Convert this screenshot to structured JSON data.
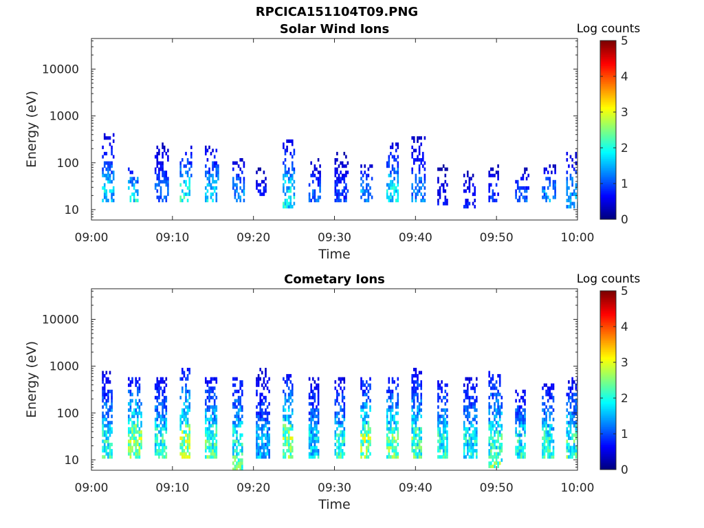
{
  "figure_title": "RPCICA151104T09.PNG",
  "chart_data": [
    {
      "type": "heatmap",
      "title": "Solar Wind Ions",
      "xlabel": "Time",
      "ylabel": "Energy (eV)",
      "x_ticks": [
        "09:00",
        "09:10",
        "09:20",
        "09:30",
        "09:40",
        "09:50",
        "10:00"
      ],
      "xlim": [
        "09:00",
        "10:00"
      ],
      "y_ticks": [
        "10",
        "100",
        "1000",
        "10000"
      ],
      "ylim": [
        6,
        45000
      ],
      "yscale": "log",
      "colorbar": {
        "label": "Log counts",
        "ticks": [
          "0",
          "1",
          "2",
          "3",
          "4",
          "5"
        ],
        "range": [
          0,
          5
        ],
        "colormap": "jet"
      },
      "sweep_start_minutes": [
        1.5,
        4.7,
        8.0,
        11.1,
        14.2,
        17.6,
        20.5,
        23.8,
        27.0,
        30.2,
        33.4,
        36.6,
        39.7,
        42.9,
        46.1,
        49.2,
        52.5,
        55.8,
        58.8
      ],
      "sweeps": [
        {
          "t": 1.5,
          "emin": 17,
          "emax": 390,
          "peak": 1.8
        },
        {
          "t": 4.7,
          "emin": 17,
          "emax": 90,
          "peak": 2.0
        },
        {
          "t": 8.0,
          "emin": 17,
          "emax": 250,
          "peak": 1.3
        },
        {
          "t": 11.1,
          "emin": 17,
          "emax": 210,
          "peak": 2.2
        },
        {
          "t": 14.2,
          "emin": 17,
          "emax": 230,
          "peak": 1.9
        },
        {
          "t": 17.6,
          "emin": 17,
          "emax": 120,
          "peak": 1.5
        },
        {
          "t": 20.5,
          "emin": 20,
          "emax": 70,
          "peak": 0.8
        },
        {
          "t": 23.8,
          "emin": 12,
          "emax": 300,
          "peak": 2.1
        },
        {
          "t": 27.0,
          "emin": 17,
          "emax": 110,
          "peak": 1.2
        },
        {
          "t": 30.2,
          "emin": 17,
          "emax": 160,
          "peak": 1.0
        },
        {
          "t": 33.4,
          "emin": 17,
          "emax": 80,
          "peak": 1.6
        },
        {
          "t": 36.6,
          "emin": 17,
          "emax": 250,
          "peak": 2.0
        },
        {
          "t": 39.7,
          "emin": 17,
          "emax": 350,
          "peak": 1.4
        },
        {
          "t": 42.9,
          "emin": 14,
          "emax": 80,
          "peak": 0.7
        },
        {
          "t": 46.1,
          "emin": 12,
          "emax": 70,
          "peak": 0.8
        },
        {
          "t": 49.2,
          "emin": 17,
          "emax": 80,
          "peak": 1.0
        },
        {
          "t": 52.5,
          "emin": 17,
          "emax": 70,
          "peak": 1.2
        },
        {
          "t": 55.8,
          "emin": 17,
          "emax": 80,
          "peak": 1.5
        },
        {
          "t": 58.8,
          "emin": 12,
          "emax": 170,
          "peak": 1.7
        }
      ]
    },
    {
      "type": "heatmap",
      "title": "Cometary Ions",
      "xlabel": "Time",
      "ylabel": "Energy (eV)",
      "x_ticks": [
        "09:00",
        "09:10",
        "09:20",
        "09:30",
        "09:40",
        "09:50",
        "10:00"
      ],
      "xlim": [
        "09:00",
        "10:00"
      ],
      "y_ticks": [
        "10",
        "100",
        "1000",
        "10000"
      ],
      "ylim": [
        6,
        45000
      ],
      "yscale": "log",
      "colorbar": {
        "label": "Log counts",
        "ticks": [
          "0",
          "1",
          "2",
          "3",
          "4",
          "5"
        ],
        "range": [
          0,
          5
        ],
        "colormap": "jet"
      },
      "sweep_start_minutes": [
        1.5,
        4.7,
        8.0,
        11.1,
        14.2,
        17.6,
        20.5,
        23.8,
        27.0,
        30.2,
        33.4,
        36.6,
        39.7,
        42.9,
        46.1,
        49.2,
        52.5,
        55.8,
        58.8
      ],
      "sweeps": [
        {
          "t": 1.5,
          "emin": 12,
          "emax": 700,
          "peak": 2.3
        },
        {
          "t": 4.7,
          "emin": 12,
          "emax": 550,
          "peak": 3.0
        },
        {
          "t": 8.0,
          "emin": 12,
          "emax": 500,
          "peak": 2.5
        },
        {
          "t": 11.1,
          "emin": 12,
          "emax": 800,
          "peak": 3.1
        },
        {
          "t": 14.2,
          "emin": 12,
          "emax": 560,
          "peak": 2.6
        },
        {
          "t": 17.6,
          "emin": 6,
          "emax": 560,
          "peak": 2.7
        },
        {
          "t": 20.5,
          "emin": 12,
          "emax": 800,
          "peak": 1.7
        },
        {
          "t": 23.8,
          "emin": 12,
          "emax": 600,
          "peak": 3.0
        },
        {
          "t": 27.0,
          "emin": 12,
          "emax": 520,
          "peak": 2.0
        },
        {
          "t": 30.2,
          "emin": 12,
          "emax": 500,
          "peak": 2.3
        },
        {
          "t": 33.4,
          "emin": 12,
          "emax": 560,
          "peak": 3.0
        },
        {
          "t": 36.6,
          "emin": 12,
          "emax": 560,
          "peak": 2.8
        },
        {
          "t": 39.7,
          "emin": 12,
          "emax": 800,
          "peak": 2.6
        },
        {
          "t": 42.9,
          "emin": 12,
          "emax": 560,
          "peak": 2.4
        },
        {
          "t": 46.1,
          "emin": 12,
          "emax": 560,
          "peak": 2.2
        },
        {
          "t": 49.2,
          "emin": 7,
          "emax": 700,
          "peak": 2.7
        },
        {
          "t": 52.5,
          "emin": 12,
          "emax": 300,
          "peak": 2.3
        },
        {
          "t": 55.8,
          "emin": 12,
          "emax": 400,
          "peak": 2.4
        },
        {
          "t": 58.8,
          "emin": 12,
          "emax": 500,
          "peak": 2.5
        }
      ]
    }
  ]
}
